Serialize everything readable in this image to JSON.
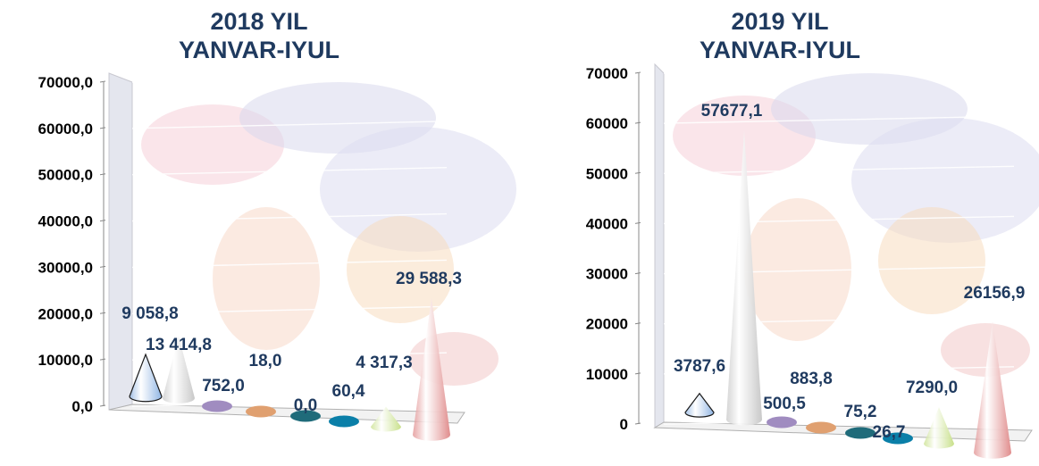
{
  "charts": [
    {
      "title_line1": "2018 YIL",
      "title_line2": "YANVAR-IYUL"
    },
    {
      "title_line1": "2019 YIL",
      "title_line2": "YANVAR-IYUL"
    }
  ],
  "chart_data": [
    {
      "type": "bar",
      "title": "2018 YIL YANVAR-IYUL",
      "ylim": [
        0,
        70000
      ],
      "yticks": [
        "0,0",
        "10000,0",
        "20000,0",
        "30000,0",
        "40000,0",
        "50000,0",
        "60000,0",
        "70000,0"
      ],
      "values": [
        9058.8,
        13414.8,
        752.0,
        18.0,
        0.0,
        60.4,
        4317.3,
        29588.3
      ],
      "labels": [
        "9 058,8",
        "13 414,8",
        "752,0",
        "18,0",
        "0,0",
        "60,4",
        "4 317,3",
        "29 588,3"
      ],
      "colors": [
        "#8fb4e3",
        "#c8c8c8",
        "#a08cc0",
        "#e0a070",
        "#1f6b7a",
        "#0a7fa8",
        "#c8e08a",
        "#e08c8c"
      ]
    },
    {
      "type": "bar",
      "title": "2019 YIL YANVAR-IYUL",
      "ylim": [
        0,
        70000
      ],
      "yticks": [
        "0",
        "10000",
        "20000",
        "30000",
        "40000",
        "50000",
        "60000",
        "70000"
      ],
      "values": [
        3787.6,
        57677.1,
        500.5,
        883.8,
        75.2,
        26.7,
        7290.0,
        26156.9
      ],
      "labels": [
        "3787,6",
        "57677,1",
        "500,5",
        "883,8",
        "75,2",
        "26,7",
        "7290,0",
        "26156,9"
      ],
      "colors": [
        "#8fb4e3",
        "#c8c8c8",
        "#a08cc0",
        "#e0a070",
        "#1f6b7a",
        "#0a7fa8",
        "#c8e08a",
        "#e08c8c"
      ]
    }
  ]
}
